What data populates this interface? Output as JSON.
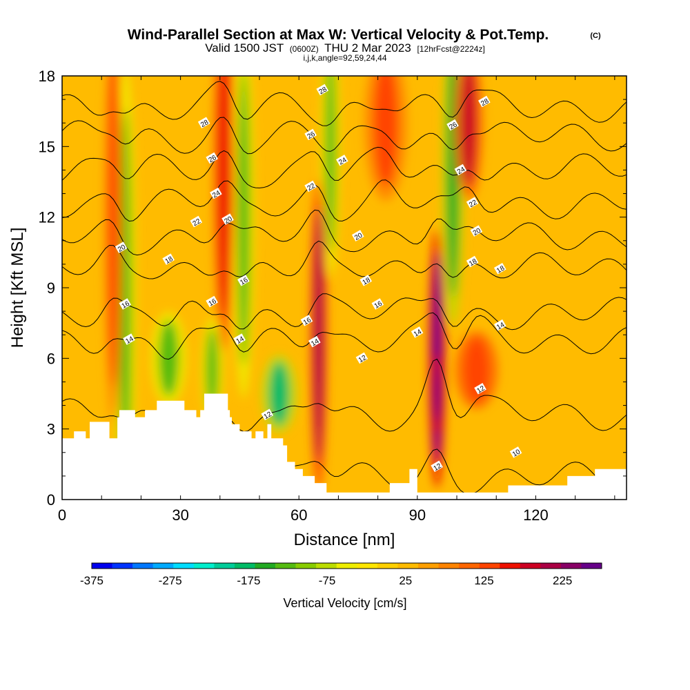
{
  "chart_data": {
    "type": "heatmap",
    "title": "Wind-Parallel Section at Max W: Vertical Velocity & Pot.Temp.",
    "title_suffix": "(C)",
    "subtitle_parts": [
      "Valid 1500 JST",
      "(0600Z)",
      "THU 2 Mar 2023",
      "[12hrFcst@2224z]"
    ],
    "meta": "i,j,k,angle=92,59,24,44",
    "xlabel": "Distance [nm]",
    "ylabel": "Height [Kft MSL]",
    "xlim": [
      0,
      143
    ],
    "ylim": [
      0,
      18
    ],
    "x_ticks": [
      0,
      30,
      60,
      90,
      120
    ],
    "y_ticks": [
      0,
      3,
      6,
      9,
      12,
      15,
      18
    ],
    "colorbar": {
      "title": "Vertical Velocity [cm/s]",
      "range": [
        -375,
        275
      ],
      "step": 25,
      "tick_labels": [
        -375,
        -275,
        -175,
        -75,
        25,
        125,
        225
      ],
      "colors": [
        "#0000ee",
        "#0033ff",
        "#0077ff",
        "#00aaff",
        "#00ddff",
        "#00eecc",
        "#00cc99",
        "#00bb66",
        "#22aa22",
        "#55bb11",
        "#88cc00",
        "#bbdd00",
        "#eeee00",
        "#ffe600",
        "#ffd000",
        "#ffbb00",
        "#ff9f00",
        "#ff8400",
        "#ff6600",
        "#ff4400",
        "#ee1100",
        "#cc0022",
        "#aa0044",
        "#880066",
        "#660088"
      ]
    },
    "background_velocity": 20,
    "updrafts": [
      {
        "x": 16,
        "y": 8.5,
        "w": 1.5,
        "h": 9,
        "v": -140
      },
      {
        "x": 27,
        "y": 6,
        "w": 2.5,
        "h": 1.8,
        "v": -150
      },
      {
        "x": 38,
        "y": 5.5,
        "w": 1.5,
        "h": 2,
        "v": -140
      },
      {
        "x": 46,
        "y": 12,
        "w": 1.5,
        "h": 7,
        "v": -150
      },
      {
        "x": 55,
        "y": 4.5,
        "w": 2.5,
        "h": 1.5,
        "v": -180
      },
      {
        "x": 68,
        "y": 15,
        "w": 1.3,
        "h": 5,
        "v": -140
      },
      {
        "x": 99,
        "y": 14,
        "w": 1.5,
        "h": 6,
        "v": -175
      },
      {
        "x": 13,
        "y": 12,
        "w": 1.3,
        "h": 8,
        "v": 110
      },
      {
        "x": 41,
        "y": 14,
        "w": 1.5,
        "h": 7,
        "v": 140
      },
      {
        "x": 65,
        "y": 7,
        "w": 1.2,
        "h": 6,
        "v": 175
      },
      {
        "x": 95,
        "y": 6,
        "w": 1.2,
        "h": 5,
        "v": 225
      },
      {
        "x": 95,
        "y": 4.5,
        "w": 0.8,
        "h": 1.5,
        "v": 270
      },
      {
        "x": 103,
        "y": 16,
        "w": 2,
        "h": 3,
        "v": 150
      },
      {
        "x": 82,
        "y": 16,
        "w": 3,
        "h": 3,
        "v": 110
      },
      {
        "x": 105,
        "y": 5.5,
        "w": 3,
        "h": 1.5,
        "v": 120
      }
    ],
    "terrain": [
      [
        0,
        2.6
      ],
      [
        3,
        2.6
      ],
      [
        3,
        2.9
      ],
      [
        6,
        2.9
      ],
      [
        6,
        2.6
      ],
      [
        7,
        2.6
      ],
      [
        7,
        3.3
      ],
      [
        12,
        3.3
      ],
      [
        12,
        2.6
      ],
      [
        14,
        2.6
      ],
      [
        14,
        3.5
      ],
      [
        14.5,
        3.5
      ],
      [
        14.5,
        3.8
      ],
      [
        18.5,
        3.8
      ],
      [
        18.5,
        3.5
      ],
      [
        21,
        3.5
      ],
      [
        21,
        3.8
      ],
      [
        24,
        3.8
      ],
      [
        24,
        4.2
      ],
      [
        31,
        4.2
      ],
      [
        31,
        3.8
      ],
      [
        34,
        3.8
      ],
      [
        34,
        3.5
      ],
      [
        35,
        3.5
      ],
      [
        35,
        3.8
      ],
      [
        36,
        3.8
      ],
      [
        36,
        4.5
      ],
      [
        42,
        4.5
      ],
      [
        42,
        3.8
      ],
      [
        42.5,
        3.8
      ],
      [
        42.5,
        3.5
      ],
      [
        43,
        3.5
      ],
      [
        43,
        3.2
      ],
      [
        45,
        3.2
      ],
      [
        45,
        2.9
      ],
      [
        48,
        2.9
      ],
      [
        48,
        2.6
      ],
      [
        49,
        2.6
      ],
      [
        49,
        2.9
      ],
      [
        51,
        2.9
      ],
      [
        51,
        2.6
      ],
      [
        52,
        2.6
      ],
      [
        52,
        3.2
      ],
      [
        53,
        3.2
      ],
      [
        53,
        2.6
      ],
      [
        56,
        2.6
      ],
      [
        56,
        2.3
      ],
      [
        57,
        2.3
      ],
      [
        57,
        1.6
      ],
      [
        59,
        1.6
      ],
      [
        59,
        1.3
      ],
      [
        61,
        1.3
      ],
      [
        61,
        1.0
      ],
      [
        64,
        1.0
      ],
      [
        64,
        0.7
      ],
      [
        67,
        0.7
      ],
      [
        67,
        0.3
      ],
      [
        83,
        0.3
      ],
      [
        83,
        0.7
      ],
      [
        88,
        0.7
      ],
      [
        88,
        1.3
      ],
      [
        90,
        1.3
      ],
      [
        90,
        0.3
      ],
      [
        113,
        0.3
      ],
      [
        113,
        0.6
      ],
      [
        128,
        0.6
      ],
      [
        128,
        1.0
      ],
      [
        135,
        1.0
      ],
      [
        135,
        1.3
      ],
      [
        143,
        1.3
      ]
    ],
    "contours": [
      {
        "level": 10,
        "y": 0.9
      },
      {
        "level": 12,
        "y": 3.6
      },
      {
        "level": 14,
        "y": 6.8
      },
      {
        "level": 16,
        "y": 7.9
      },
      {
        "level": 18,
        "y": 9.8
      },
      {
        "level": 20,
        "y": 11.2
      },
      {
        "level": 22,
        "y": 12.6
      },
      {
        "level": 24,
        "y": 14.0
      },
      {
        "level": 26,
        "y": 15.4
      },
      {
        "level": 28,
        "y": 16.7
      }
    ],
    "contour_labels": [
      {
        "text": "12",
        "x": 52,
        "y": 3.6
      },
      {
        "text": "14",
        "x": 17,
        "y": 6.8
      },
      {
        "text": "16",
        "x": 16,
        "y": 8.3
      },
      {
        "text": "18",
        "x": 27,
        "y": 10.2
      },
      {
        "text": "20",
        "x": 15,
        "y": 10.7
      },
      {
        "text": "22",
        "x": 34,
        "y": 11.8
      },
      {
        "text": "24",
        "x": 39,
        "y": 13.0
      },
      {
        "text": "26",
        "x": 38,
        "y": 14.5
      },
      {
        "text": "28",
        "x": 36,
        "y": 16.0
      },
      {
        "text": "20",
        "x": 42,
        "y": 11.9
      },
      {
        "text": "16",
        "x": 46,
        "y": 9.3
      },
      {
        "text": "16",
        "x": 38,
        "y": 8.4
      },
      {
        "text": "14",
        "x": 45,
        "y": 6.8
      },
      {
        "text": "16",
        "x": 62,
        "y": 7.6
      },
      {
        "text": "14",
        "x": 64,
        "y": 6.7
      },
      {
        "text": "22",
        "x": 63,
        "y": 13.3
      },
      {
        "text": "26",
        "x": 63,
        "y": 15.5
      },
      {
        "text": "28",
        "x": 66,
        "y": 17.4
      },
      {
        "text": "24",
        "x": 71,
        "y": 14.4
      },
      {
        "text": "20",
        "x": 75,
        "y": 11.2
      },
      {
        "text": "18",
        "x": 77,
        "y": 9.3
      },
      {
        "text": "16",
        "x": 80,
        "y": 8.3
      },
      {
        "text": "12",
        "x": 76,
        "y": 6.0
      },
      {
        "text": "14",
        "x": 90,
        "y": 7.1
      },
      {
        "text": "12",
        "x": 95,
        "y": 1.4
      },
      {
        "text": "26",
        "x": 99,
        "y": 15.9
      },
      {
        "text": "24",
        "x": 101,
        "y": 14.0
      },
      {
        "text": "22",
        "x": 104,
        "y": 12.6
      },
      {
        "text": "20",
        "x": 105,
        "y": 11.4
      },
      {
        "text": "18",
        "x": 104,
        "y": 10.1
      },
      {
        "text": "28",
        "x": 107,
        "y": 16.9
      },
      {
        "text": "18",
        "x": 111,
        "y": 9.8
      },
      {
        "text": "14",
        "x": 111,
        "y": 7.4
      },
      {
        "text": "12",
        "x": 106,
        "y": 4.7
      },
      {
        "text": "10",
        "x": 115,
        "y": 2.0
      }
    ]
  }
}
